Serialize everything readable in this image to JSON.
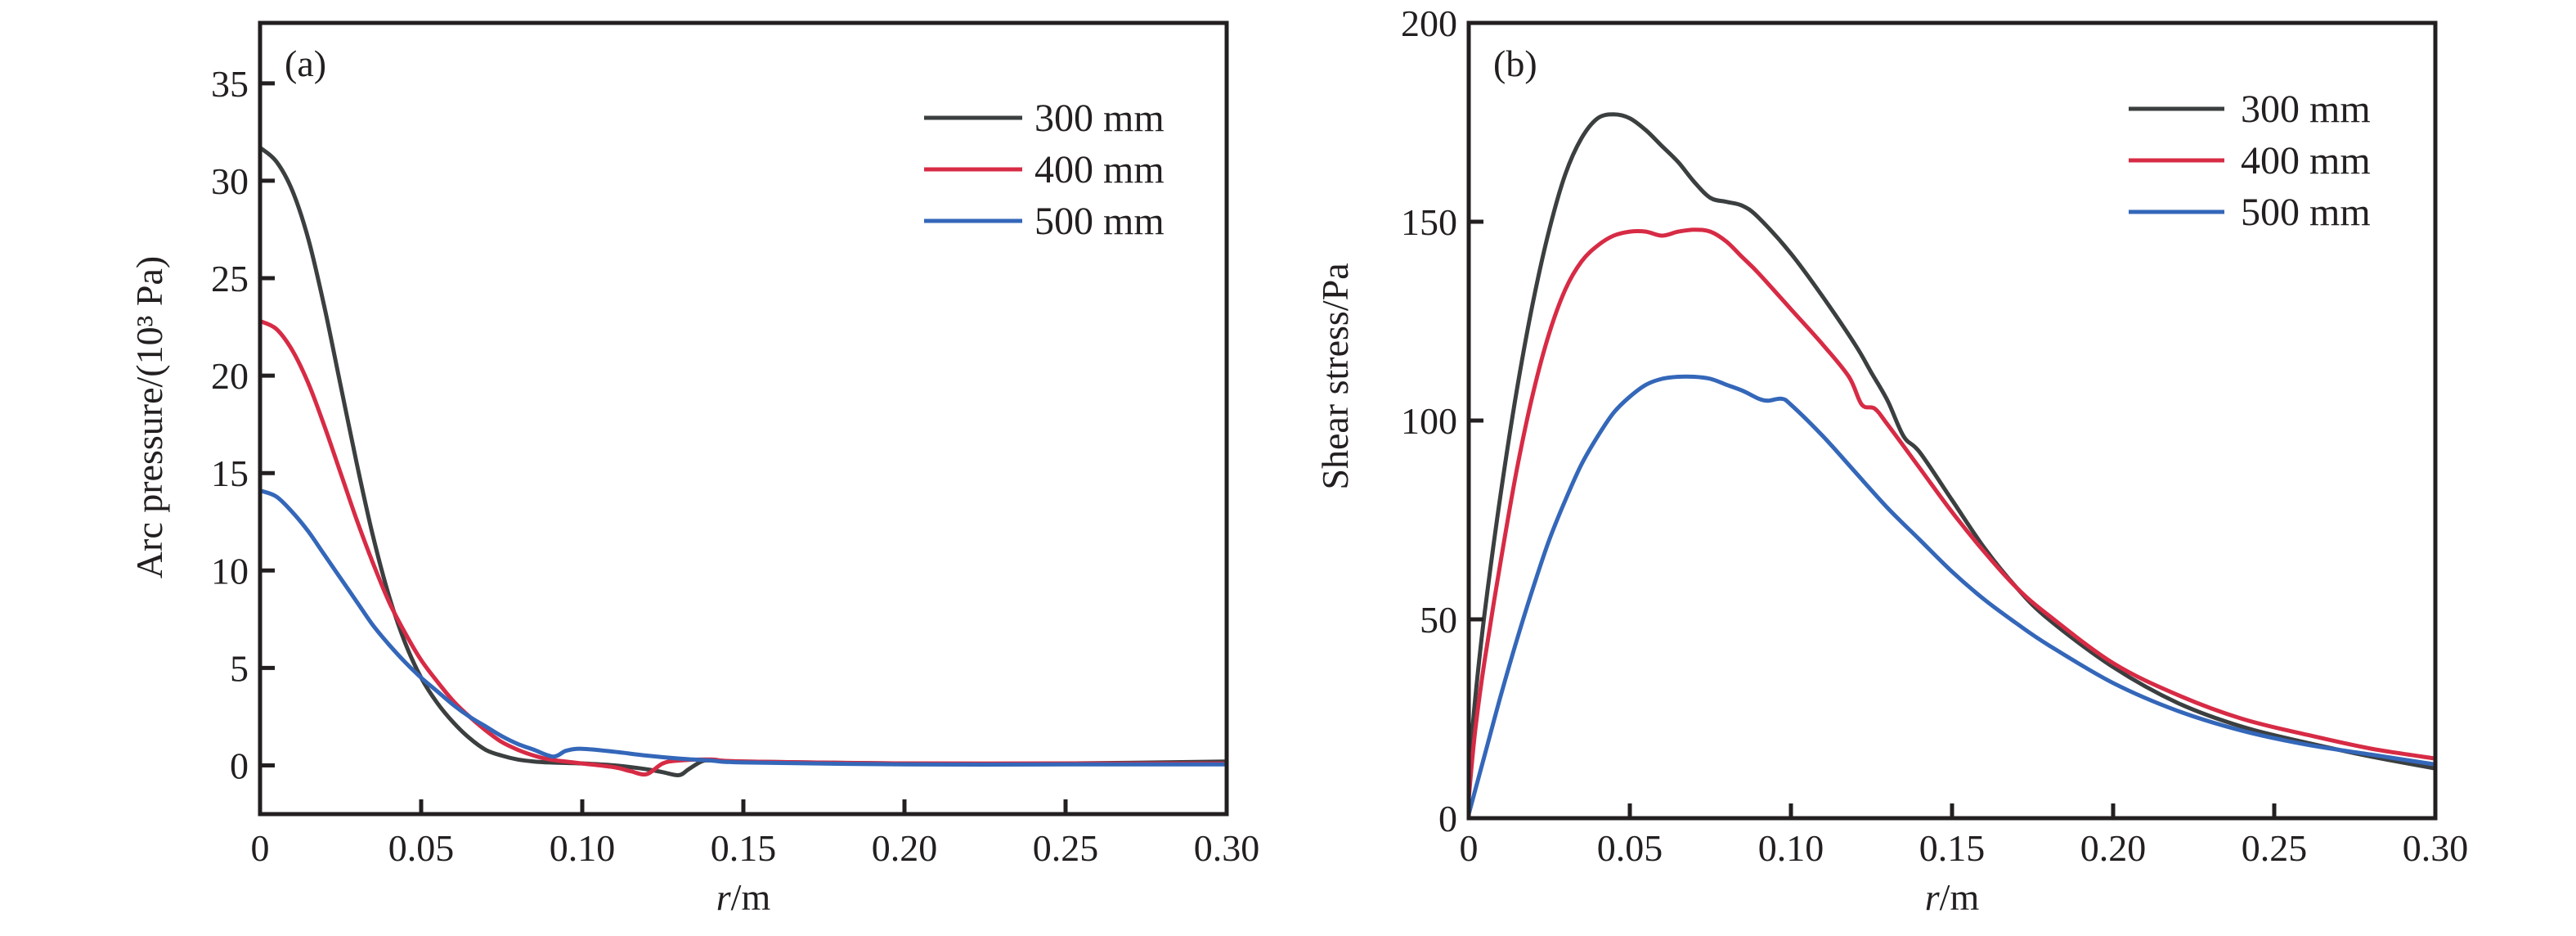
{
  "chart_data": [
    {
      "type": "line",
      "panel_label": "(a)",
      "title": "",
      "xlabel_italic": "r",
      "xlabel_rest": "/m",
      "ylabel": "Arc pressure/(10³ Pa)",
      "xlim": [
        0,
        0.3
      ],
      "ylim": [
        -2.5,
        38.1
      ],
      "xticks": [
        0,
        0.05,
        0.1,
        0.15,
        0.2,
        0.25,
        0.3
      ],
      "xtick_labels": [
        "0",
        "0.05",
        "0.10",
        "0.15",
        "0.20",
        "0.25",
        "0.30"
      ],
      "yticks": [
        0,
        5,
        10,
        15,
        20,
        25,
        30,
        35
      ],
      "ytick_labels": [
        "0",
        "5",
        "10",
        "15",
        "20",
        "25",
        "30",
        "35"
      ],
      "grid": false,
      "legend_position": "top-right",
      "series": [
        {
          "name": "300 mm",
          "color": "#3b3f40",
          "x": [
            0,
            0.005,
            0.01,
            0.015,
            0.02,
            0.025,
            0.03,
            0.035,
            0.04,
            0.045,
            0.05,
            0.055,
            0.06,
            0.065,
            0.07,
            0.075,
            0.08,
            0.085,
            0.09,
            0.1,
            0.11,
            0.12,
            0.125,
            0.13,
            0.133,
            0.137,
            0.14,
            0.15,
            0.2,
            0.25,
            0.3
          ],
          "y": [
            31.7,
            31.0,
            29.5,
            27.0,
            23.5,
            19.5,
            15.5,
            11.8,
            8.7,
            6.3,
            4.5,
            3.2,
            2.2,
            1.4,
            0.8,
            0.5,
            0.3,
            0.2,
            0.15,
            0.1,
            0.0,
            -0.2,
            -0.35,
            -0.5,
            -0.2,
            0.2,
            0.25,
            0.2,
            0.1,
            0.1,
            0.2
          ]
        },
        {
          "name": "400 mm",
          "color": "#d72b45",
          "x": [
            0,
            0.005,
            0.01,
            0.015,
            0.02,
            0.025,
            0.03,
            0.035,
            0.04,
            0.045,
            0.05,
            0.055,
            0.06,
            0.065,
            0.07,
            0.075,
            0.08,
            0.085,
            0.09,
            0.1,
            0.11,
            0.115,
            0.12,
            0.125,
            0.13,
            0.14,
            0.15,
            0.2,
            0.25,
            0.3
          ],
          "y": [
            22.8,
            22.4,
            21.3,
            19.6,
            17.4,
            15.0,
            12.6,
            10.4,
            8.4,
            6.8,
            5.4,
            4.3,
            3.3,
            2.5,
            1.8,
            1.2,
            0.8,
            0.5,
            0.3,
            0.1,
            -0.1,
            -0.3,
            -0.45,
            0.1,
            0.25,
            0.3,
            0.2,
            0.1,
            0.1,
            0.1
          ]
        },
        {
          "name": "500 mm",
          "color": "#3467b9",
          "x": [
            0,
            0.005,
            0.01,
            0.015,
            0.02,
            0.025,
            0.03,
            0.035,
            0.04,
            0.045,
            0.05,
            0.055,
            0.06,
            0.065,
            0.07,
            0.075,
            0.08,
            0.085,
            0.091,
            0.095,
            0.1,
            0.11,
            0.12,
            0.13,
            0.14,
            0.15,
            0.2,
            0.25,
            0.3
          ],
          "y": [
            14.1,
            13.8,
            13.0,
            12.0,
            10.8,
            9.6,
            8.4,
            7.2,
            6.2,
            5.3,
            4.5,
            3.8,
            3.1,
            2.5,
            2.0,
            1.5,
            1.1,
            0.8,
            0.45,
            0.75,
            0.85,
            0.7,
            0.5,
            0.35,
            0.25,
            0.15,
            0.05,
            0.05,
            0.05
          ]
        }
      ]
    },
    {
      "type": "line",
      "panel_label": "(b)",
      "title": "",
      "xlabel_italic": "r",
      "xlabel_rest": "/m",
      "ylabel": "Shear stress/Pa",
      "xlim": [
        0,
        0.3
      ],
      "ylim": [
        0,
        200
      ],
      "xticks": [
        0,
        0.05,
        0.1,
        0.15,
        0.2,
        0.25,
        0.3
      ],
      "xtick_labels": [
        "0",
        "0.05",
        "0.10",
        "0.15",
        "0.20",
        "0.25",
        "0.30"
      ],
      "yticks": [
        0,
        50,
        100,
        150,
        200
      ],
      "ytick_labels": [
        "0",
        "50",
        "100",
        "150",
        "200"
      ],
      "grid": false,
      "legend_position": "top-right",
      "series": [
        {
          "name": "300 mm",
          "color": "#3b3f40",
          "x": [
            0,
            0.002,
            0.005,
            0.01,
            0.015,
            0.02,
            0.025,
            0.03,
            0.035,
            0.04,
            0.045,
            0.05,
            0.055,
            0.06,
            0.065,
            0.07,
            0.075,
            0.08,
            0.085,
            0.09,
            0.1,
            0.11,
            0.12,
            0.125,
            0.13,
            0.135,
            0.14,
            0.15,
            0.16,
            0.17,
            0.18,
            0.2,
            0.22,
            0.24,
            0.26,
            0.28,
            0.3
          ],
          "y": [
            11,
            30,
            52,
            82,
            108,
            130,
            148,
            162,
            171,
            176,
            177,
            176,
            173,
            169,
            165,
            160,
            156,
            155,
            154,
            151,
            142,
            131,
            119,
            112,
            105,
            96,
            92,
            80,
            68,
            58,
            50,
            38,
            29,
            23,
            19,
            15.5,
            12.5
          ]
        },
        {
          "name": "400 mm",
          "color": "#d72b45",
          "x": [
            0,
            0.002,
            0.005,
            0.01,
            0.015,
            0.02,
            0.025,
            0.03,
            0.035,
            0.04,
            0.045,
            0.05,
            0.055,
            0.06,
            0.065,
            0.07,
            0.075,
            0.08,
            0.085,
            0.09,
            0.1,
            0.11,
            0.118,
            0.122,
            0.126,
            0.13,
            0.14,
            0.15,
            0.16,
            0.17,
            0.18,
            0.2,
            0.22,
            0.24,
            0.26,
            0.28,
            0.3
          ],
          "y": [
            5,
            22,
            40,
            65,
            88,
            107,
            122,
            133,
            140,
            144,
            146.5,
            147.5,
            147.5,
            146.5,
            147.5,
            148,
            147.5,
            145,
            141,
            137,
            128,
            119,
            111,
            104,
            103,
            99,
            88,
            77,
            67,
            58,
            51,
            39,
            31,
            25,
            21,
            17.5,
            15
          ]
        },
        {
          "name": "500 mm",
          "color": "#3467b9",
          "x": [
            0,
            0.005,
            0.01,
            0.015,
            0.02,
            0.025,
            0.03,
            0.035,
            0.04,
            0.045,
            0.05,
            0.055,
            0.06,
            0.065,
            0.07,
            0.075,
            0.08,
            0.085,
            0.09,
            0.093,
            0.097,
            0.1,
            0.11,
            0.12,
            0.13,
            0.14,
            0.15,
            0.16,
            0.17,
            0.18,
            0.2,
            0.22,
            0.24,
            0.26,
            0.28,
            0.3
          ],
          "y": [
            1,
            16,
            31,
            45,
            58,
            70,
            80,
            89,
            96,
            102,
            106,
            109,
            110.5,
            111,
            111,
            110.5,
            109,
            107.5,
            105.5,
            105,
            105.5,
            104,
            96,
            87,
            78,
            70,
            62,
            55,
            49,
            43.5,
            34,
            27,
            22,
            18.5,
            16,
            13.5
          ]
        }
      ]
    }
  ]
}
